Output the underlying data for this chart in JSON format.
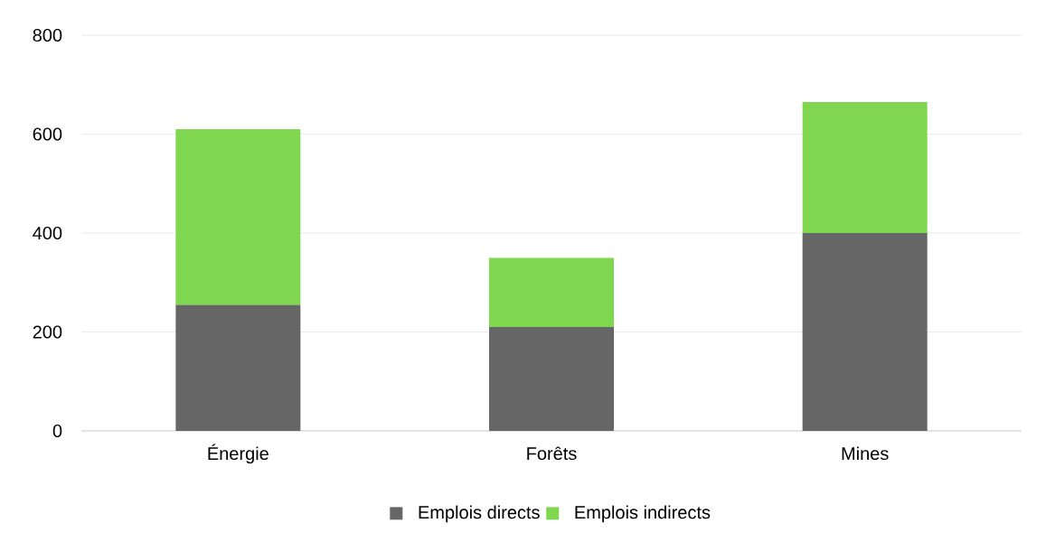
{
  "chart_data": {
    "type": "bar",
    "stacked": true,
    "categories": [
      "Énergie",
      "Forêts",
      "Mines"
    ],
    "series": [
      {
        "name": "Emplois directs",
        "color": "#666666",
        "values": [
          255,
          210,
          400
        ]
      },
      {
        "name": "Emplois indirects",
        "color": "#7ed74e",
        "values": [
          355,
          140,
          265
        ]
      }
    ],
    "ylim": [
      0,
      800
    ],
    "yticks": [
      0,
      200,
      400,
      600,
      800
    ],
    "grid": "y",
    "legend": "bottom"
  }
}
